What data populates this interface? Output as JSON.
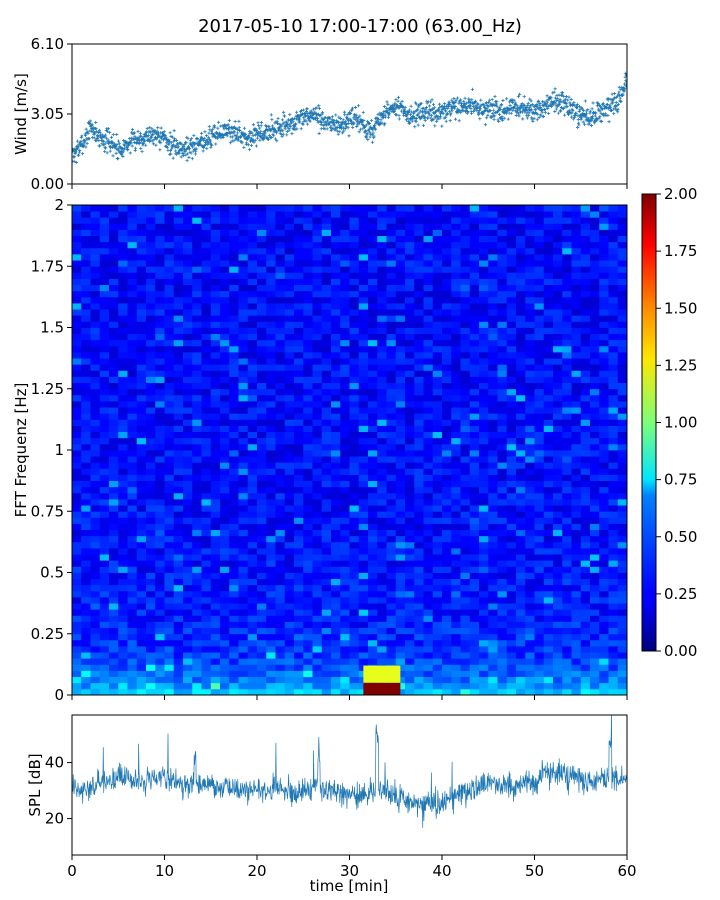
{
  "title": "2017-05-10 17:00-17:00 (63.00_Hz)",
  "colors": {
    "series": "#1f77b4",
    "colormap": "jet"
  },
  "chart_data": [
    {
      "id": "wind",
      "type": "scatter",
      "ylabel": "Wind [m/s]",
      "xlim": [
        0,
        60
      ],
      "ylim": [
        0,
        6.1
      ],
      "yticks": [
        "0.00",
        "3.05",
        "6.10"
      ],
      "marker": "+",
      "x": [
        0,
        1,
        2,
        3,
        4,
        5,
        6,
        7,
        8,
        9,
        10,
        11,
        12,
        13,
        14,
        15,
        16,
        17,
        18,
        19,
        20,
        21,
        22,
        23,
        24,
        25,
        26,
        27,
        28,
        29,
        30,
        31,
        32,
        33,
        34,
        35,
        36,
        37,
        38,
        39,
        40,
        41,
        42,
        43,
        44,
        45,
        46,
        47,
        48,
        49,
        50,
        51,
        52,
        53,
        54,
        55,
        56,
        57,
        58,
        59,
        60
      ],
      "y": [
        1.2,
        1.6,
        2.4,
        2.0,
        1.8,
        1.5,
        1.7,
        1.9,
        2.0,
        2.2,
        1.9,
        1.6,
        1.5,
        1.6,
        1.8,
        2.0,
        2.2,
        2.3,
        2.1,
        2.0,
        2.1,
        2.2,
        2.4,
        2.5,
        2.6,
        2.8,
        3.0,
        2.7,
        2.6,
        2.5,
        2.7,
        2.8,
        2.2,
        2.6,
        3.0,
        3.3,
        3.1,
        2.9,
        3.0,
        3.1,
        3.0,
        3.2,
        3.3,
        3.4,
        3.3,
        3.2,
        3.1,
        3.2,
        3.3,
        3.2,
        3.1,
        3.3,
        3.6,
        3.4,
        3.2,
        3.0,
        2.9,
        3.1,
        3.3,
        3.6,
        4.5
      ]
    },
    {
      "id": "spectrogram",
      "type": "heatmap",
      "ylabel": "FFT Frequenz [Hz]",
      "xlim": [
        0,
        60
      ],
      "ylim": [
        0,
        2
      ],
      "yticks": [
        "0",
        "0.25",
        "0.5",
        "0.75",
        "1",
        "1.25",
        "1.5",
        "1.75",
        "2"
      ],
      "colorbar": {
        "range": [
          0,
          2
        ],
        "ticks": [
          "0.00",
          "0.25",
          "0.50",
          "0.75",
          "1.00",
          "1.25",
          "1.50",
          "1.75",
          "2.00"
        ]
      },
      "features": [
        {
          "t0": 31.5,
          "t1": 35.5,
          "f0": 0.0,
          "f1": 0.05,
          "value": 2.0
        },
        {
          "t0": 31.5,
          "t1": 35.5,
          "f0": 0.05,
          "f1": 0.12,
          "value": 1.2
        }
      ]
    },
    {
      "id": "spl",
      "type": "area",
      "ylabel": "SPL [dB]",
      "xlabel": "time [min]",
      "xlim": [
        0,
        60
      ],
      "ylim": [
        7,
        57
      ],
      "yticks": [
        "20",
        "40"
      ],
      "xticks": [
        "0",
        "10",
        "20",
        "30",
        "40",
        "50",
        "60"
      ],
      "x": [
        0,
        1,
        2,
        3,
        4,
        5,
        6,
        7,
        8,
        9,
        10,
        11,
        12,
        13,
        14,
        15,
        16,
        17,
        18,
        19,
        20,
        21,
        22,
        23,
        24,
        25,
        26,
        27,
        28,
        29,
        30,
        31,
        32,
        33,
        34,
        35,
        36,
        37,
        38,
        39,
        40,
        41,
        42,
        43,
        44,
        45,
        46,
        47,
        48,
        49,
        50,
        51,
        52,
        53,
        54,
        55,
        56,
        57,
        58,
        59,
        60
      ],
      "y": [
        31,
        30,
        32,
        33,
        34,
        35,
        35,
        34,
        33,
        34,
        35,
        33,
        32,
        32,
        33,
        32,
        31,
        31,
        30,
        30,
        31,
        30,
        31,
        30,
        29,
        30,
        31,
        30,
        30,
        29,
        29,
        28,
        29,
        31,
        30,
        28,
        27,
        26,
        25,
        25,
        26,
        27,
        28,
        30,
        31,
        32,
        33,
        32,
        31,
        33,
        34,
        35,
        36,
        36,
        35,
        34,
        33,
        34,
        35,
        34,
        35
      ]
    }
  ]
}
